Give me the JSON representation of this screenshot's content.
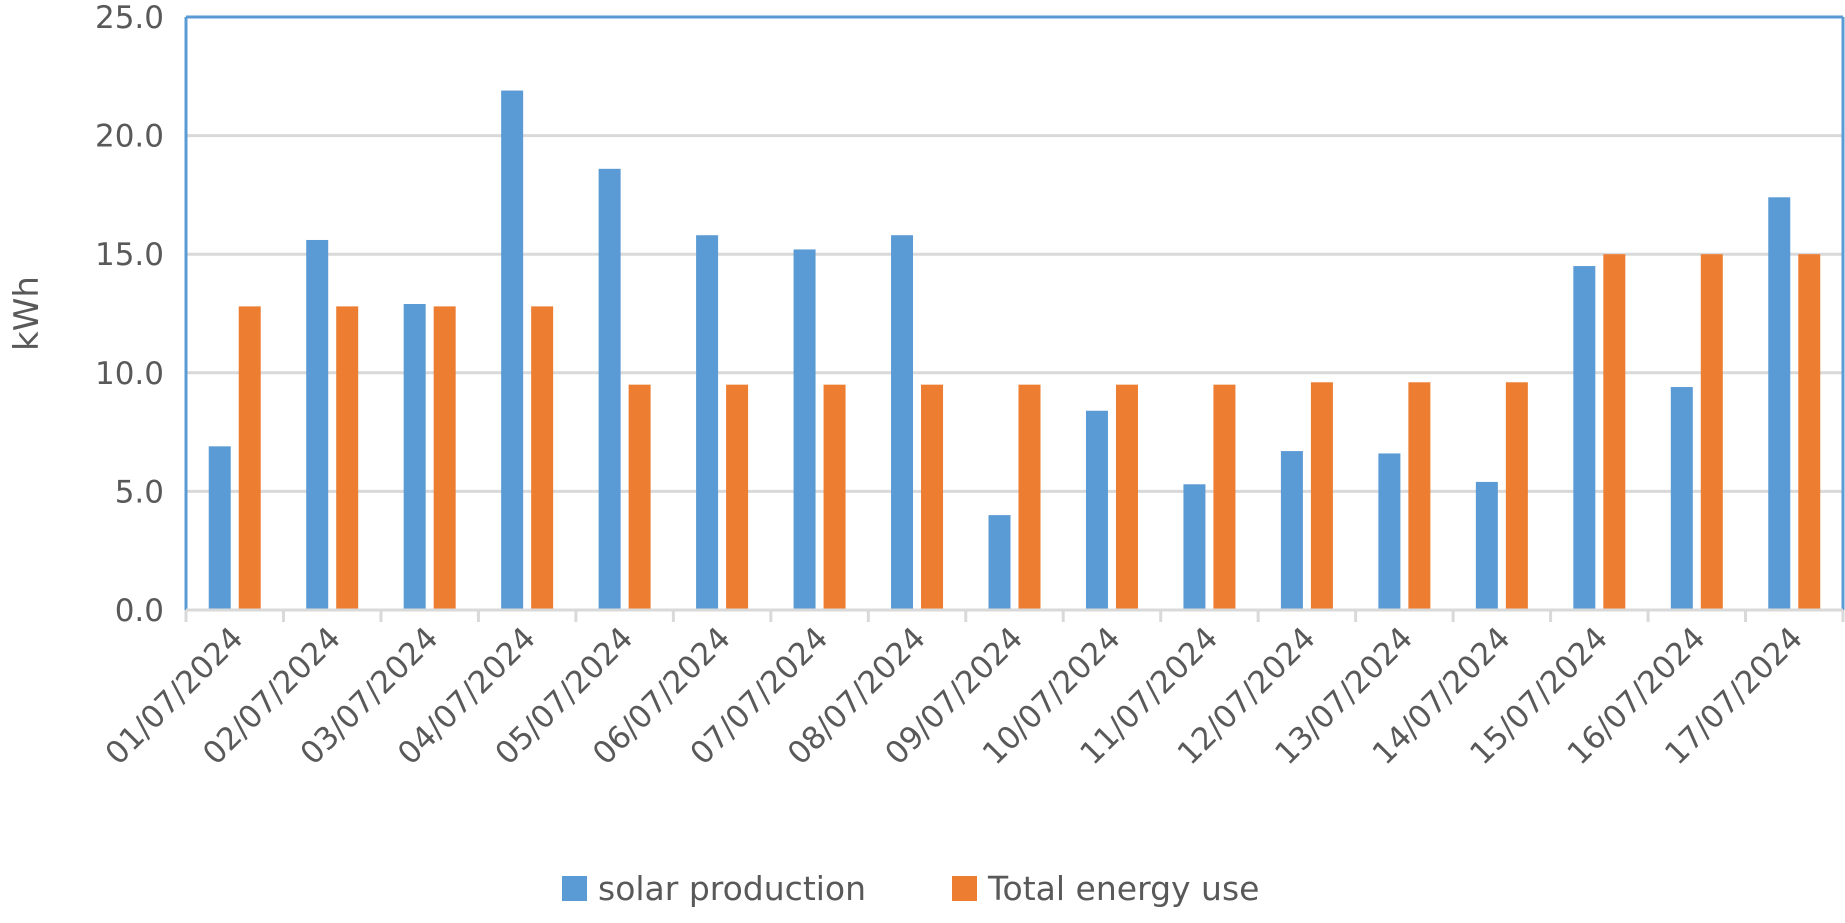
{
  "chart_data": {
    "type": "bar",
    "title": "",
    "xlabel": "",
    "ylabel": "kWh",
    "ylim": [
      0,
      25
    ],
    "yticks": [
      "0.0",
      "5.0",
      "10.0",
      "15.0",
      "20.0",
      "25.0"
    ],
    "grid": true,
    "legend_position": "bottom",
    "categories": [
      "01/07/2024",
      "02/07/2024",
      "03/07/2024",
      "04/07/2024",
      "05/07/2024",
      "06/07/2024",
      "07/07/2024",
      "08/07/2024",
      "09/07/2024",
      "10/07/2024",
      "11/07/2024",
      "12/07/2024",
      "13/07/2024",
      "14/07/2024",
      "15/07/2024",
      "16/07/2024",
      "17/07/2024"
    ],
    "series": [
      {
        "name": "solar production",
        "color": "#5B9BD5",
        "values": [
          6.9,
          15.6,
          12.9,
          21.9,
          18.6,
          15.8,
          15.2,
          15.8,
          4.0,
          8.4,
          5.3,
          6.7,
          6.6,
          5.4,
          14.5,
          9.4,
          17.4
        ]
      },
      {
        "name": "Total energy use",
        "color": "#ED7D31",
        "values": [
          12.8,
          12.8,
          12.8,
          12.8,
          9.5,
          9.5,
          9.5,
          9.5,
          9.5,
          9.5,
          9.5,
          9.6,
          9.6,
          9.6,
          15.0,
          15.0,
          15.0
        ]
      }
    ],
    "colors": {
      "plot_border": "#5B9BD5",
      "gridline": "#D9D9D9",
      "text": "#595959"
    }
  }
}
